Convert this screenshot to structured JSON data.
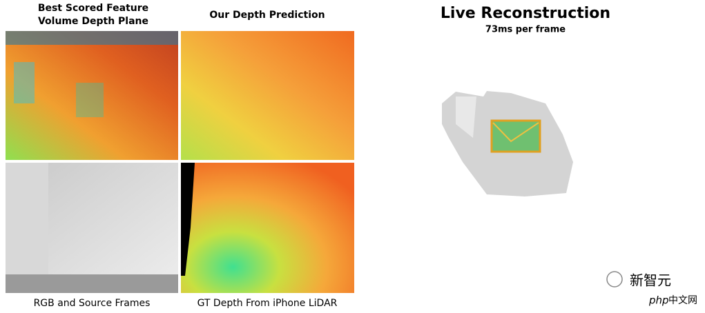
{
  "panels": {
    "feature_volume": {
      "title_lines": [
        "Best Scored Feature",
        "Volume Depth Plane"
      ]
    },
    "prediction": {
      "title": "Our Depth Prediction"
    },
    "rgb": {
      "title": "RGB and Source Frames"
    },
    "gt_depth": {
      "title": "GT Depth From iPhone LiDAR"
    }
  },
  "reconstruction": {
    "title": "Live Reconstruction",
    "subtitle": "73ms per frame"
  },
  "watermark": {
    "brand": "新智元",
    "site": "php",
    "site_suffix": "中文网"
  }
}
